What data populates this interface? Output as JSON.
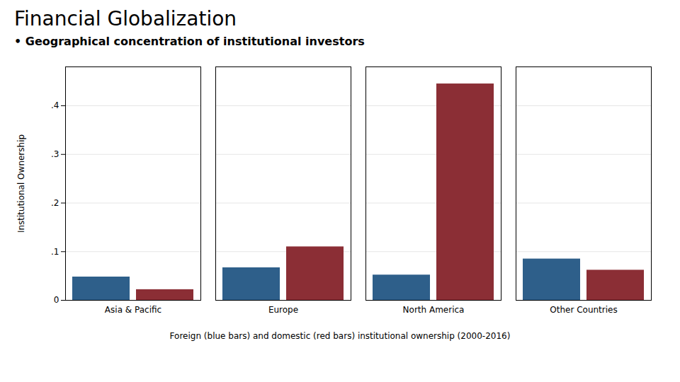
{
  "chart_data": {
    "type": "bar",
    "title": "Financial Globalization",
    "subtitle": "• Geographical concentration of institutional investors",
    "caption": "Foreign (blue bars) and domestic (red bars) institutional ownership (2000-2016)",
    "categories": [
      "Asia & Pacific",
      "Europe",
      "North America",
      "Other Countries"
    ],
    "series": [
      {
        "color": "#2e5f8a",
        "values": [
          0.048,
          0.067,
          0.052,
          0.085
        ]
      },
      {
        "color": "#8b2e35",
        "values": [
          0.022,
          0.11,
          0.445,
          0.062
        ]
      }
    ],
    "ylabel": "Institutional Ownership",
    "ylim": [
      0,
      0.48
    ],
    "yticks": [
      0,
      {
        "value": 0.1,
        "label": ".1"
      },
      {
        "value": 0.2,
        "label": ".2"
      },
      {
        "value": 0.3,
        "label": ".3"
      },
      {
        "value": 0.4,
        "label": ".4"
      }
    ],
    "grid": true
  }
}
